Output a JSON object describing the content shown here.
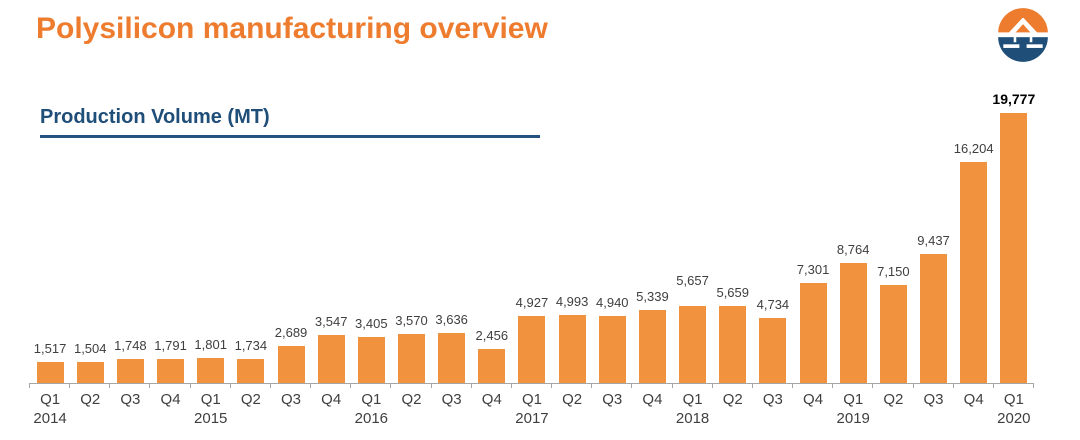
{
  "page": {
    "title": "Polysilicon manufacturing overview",
    "section_title": "Production Volume (MT)"
  },
  "logo": {
    "icon": "daqo-company-logo",
    "orange": "#EE7C2F",
    "blue": "#1F4E79"
  },
  "colors": {
    "title_orange": "#EE7C2F",
    "bar_orange": "#F0923E",
    "navy": "#1F4E79",
    "axis_gray": "#A6A6A6",
    "label_gray": "#3F3F3F"
  },
  "chart_data": {
    "type": "bar",
    "title": "Production Volume (MT)",
    "ylabel": "Production Volume (MT)",
    "unit": "MT",
    "ylim": [
      0,
      19777
    ],
    "grid": false,
    "legend": false,
    "value_labels": "above bars",
    "bar_color": "#F0923E",
    "points": [
      {
        "quarter": "Q1",
        "year": "2014",
        "value": 1517,
        "label": "1,517"
      },
      {
        "quarter": "Q2",
        "value": 1504,
        "label": "1,504"
      },
      {
        "quarter": "Q3",
        "value": 1748,
        "label": "1,748"
      },
      {
        "quarter": "Q4",
        "value": 1791,
        "label": "1,791"
      },
      {
        "quarter": "Q1",
        "year": "2015",
        "value": 1801,
        "label": "1,801"
      },
      {
        "quarter": "Q2",
        "value": 1734,
        "label": "1,734"
      },
      {
        "quarter": "Q3",
        "value": 2689,
        "label": "2,689"
      },
      {
        "quarter": "Q4",
        "value": 3547,
        "label": "3,547"
      },
      {
        "quarter": "Q1",
        "year": "2016",
        "value": 3405,
        "label": "3,405"
      },
      {
        "quarter": "Q2",
        "value": 3570,
        "label": "3,570"
      },
      {
        "quarter": "Q3",
        "value": 3636,
        "label": "3,636"
      },
      {
        "quarter": "Q4",
        "value": 2456,
        "label": "2,456"
      },
      {
        "quarter": "Q1",
        "year": "2017",
        "value": 4927,
        "label": "4,927"
      },
      {
        "quarter": "Q2",
        "value": 4993,
        "label": "4,993"
      },
      {
        "quarter": "Q3",
        "value": 4940,
        "label": "4,940"
      },
      {
        "quarter": "Q4",
        "value": 5339,
        "label": "5,339"
      },
      {
        "quarter": "Q1",
        "year": "2018",
        "value": 5657,
        "label": "5,657",
        "label_raise": 12
      },
      {
        "quarter": "Q2",
        "value": 5659,
        "label": "5,659"
      },
      {
        "quarter": "Q3",
        "value": 4734,
        "label": "4,734"
      },
      {
        "quarter": "Q4",
        "value": 7301,
        "label": "7,301"
      },
      {
        "quarter": "Q1",
        "year": "2019",
        "value": 8764,
        "label": "8,764"
      },
      {
        "quarter": "Q2",
        "value": 7150,
        "label": "7,150"
      },
      {
        "quarter": "Q3",
        "value": 9437,
        "label": "9,437"
      },
      {
        "quarter": "Q4",
        "value": 16204,
        "label": "16,204"
      },
      {
        "quarter": "Q1",
        "year": "2020",
        "value": 19777,
        "label": "19,777",
        "bold": true
      }
    ]
  }
}
